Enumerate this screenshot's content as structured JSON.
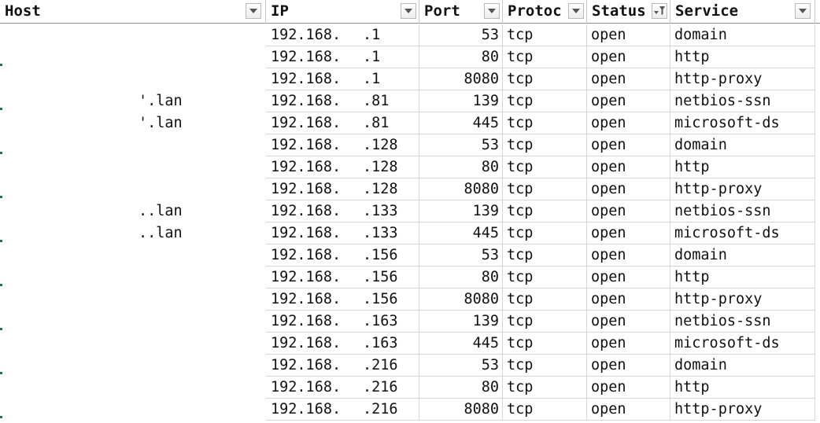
{
  "columns": [
    {
      "key": "host",
      "label": "Host"
    },
    {
      "key": "ip",
      "label": "IP"
    },
    {
      "key": "port",
      "label": "Port"
    },
    {
      "key": "protocol",
      "label": "Protoc"
    },
    {
      "key": "status",
      "label": "Status"
    },
    {
      "key": "service",
      "label": "Service"
    }
  ],
  "rows": [
    {
      "host": "",
      "ip_prefix": "192.168.",
      "ip_suffix": ".1",
      "port": "53",
      "protocol": "tcp",
      "status": "open",
      "service": "domain"
    },
    {
      "host": "",
      "ip_prefix": "192.168.",
      "ip_suffix": ".1",
      "port": "80",
      "protocol": "tcp",
      "status": "open",
      "service": "http"
    },
    {
      "host": "",
      "ip_prefix": "192.168.",
      "ip_suffix": ".1",
      "port": "8080",
      "protocol": "tcp",
      "status": "open",
      "service": "http-proxy"
    },
    {
      "host": "'.lan",
      "ip_prefix": "192.168.",
      "ip_suffix": ".81",
      "port": "139",
      "protocol": "tcp",
      "status": "open",
      "service": "netbios-ssn"
    },
    {
      "host": "'.lan",
      "ip_prefix": "192.168.",
      "ip_suffix": ".81",
      "port": "445",
      "protocol": "tcp",
      "status": "open",
      "service": "microsoft-ds"
    },
    {
      "host": "",
      "ip_prefix": "192.168.",
      "ip_suffix": ".128",
      "port": "53",
      "protocol": "tcp",
      "status": "open",
      "service": "domain"
    },
    {
      "host": "",
      "ip_prefix": "192.168.",
      "ip_suffix": ".128",
      "port": "80",
      "protocol": "tcp",
      "status": "open",
      "service": "http"
    },
    {
      "host": "",
      "ip_prefix": "192.168.",
      "ip_suffix": ".128",
      "port": "8080",
      "protocol": "tcp",
      "status": "open",
      "service": "http-proxy"
    },
    {
      "host": "..lan",
      "ip_prefix": "192.168.",
      "ip_suffix": ".133",
      "port": "139",
      "protocol": "tcp",
      "status": "open",
      "service": "netbios-ssn"
    },
    {
      "host": "..lan",
      "ip_prefix": "192.168.",
      "ip_suffix": ".133",
      "port": "445",
      "protocol": "tcp",
      "status": "open",
      "service": "microsoft-ds"
    },
    {
      "host": "",
      "ip_prefix": "192.168.",
      "ip_suffix": ".156",
      "port": "53",
      "protocol": "tcp",
      "status": "open",
      "service": "domain"
    },
    {
      "host": "",
      "ip_prefix": "192.168.",
      "ip_suffix": ".156",
      "port": "80",
      "protocol": "tcp",
      "status": "open",
      "service": "http"
    },
    {
      "host": "",
      "ip_prefix": "192.168.",
      "ip_suffix": ".156",
      "port": "8080",
      "protocol": "tcp",
      "status": "open",
      "service": "http-proxy"
    },
    {
      "host": "",
      "ip_prefix": "192.168.",
      "ip_suffix": ".163",
      "port": "139",
      "protocol": "tcp",
      "status": "open",
      "service": "netbios-ssn"
    },
    {
      "host": "",
      "ip_prefix": "192.168.",
      "ip_suffix": ".163",
      "port": "445",
      "protocol": "tcp",
      "status": "open",
      "service": "microsoft-ds"
    },
    {
      "host": "",
      "ip_prefix": "192.168.",
      "ip_suffix": ".216",
      "port": "53",
      "protocol": "tcp",
      "status": "open",
      "service": "domain"
    },
    {
      "host": "",
      "ip_prefix": "192.168.",
      "ip_suffix": ".216",
      "port": "80",
      "protocol": "tcp",
      "status": "open",
      "service": "http"
    },
    {
      "host": "",
      "ip_prefix": "192.168.",
      "ip_suffix": ".216",
      "port": "8080",
      "protocol": "tcp",
      "status": "open",
      "service": "http-proxy"
    }
  ],
  "filters": {
    "host": "dropdown-arrow-icon",
    "ip": "dropdown-arrow-icon",
    "port": "dropdown-arrow-icon",
    "protocol": "dropdown-arrow-icon",
    "status": "filter-active-icon",
    "service": "dropdown-arrow-icon"
  },
  "colors": {
    "header_border": "#8e8e8e",
    "gridline": "#d6d6d6",
    "sheet_accent": "#217346"
  }
}
